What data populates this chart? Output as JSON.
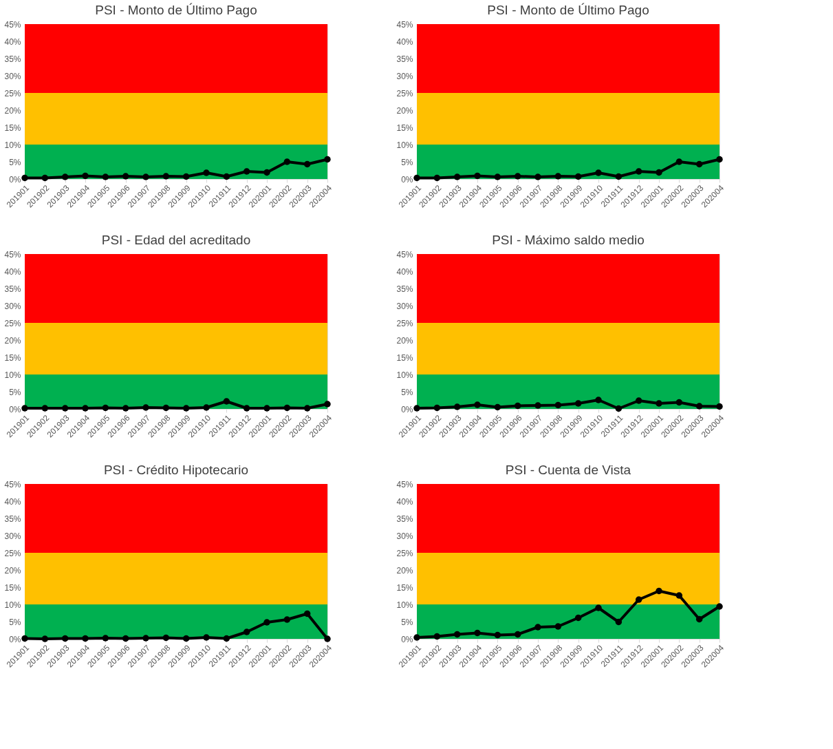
{
  "chart_data": [
    {
      "type": "line",
      "title": "PSI - Monto de Último Pago",
      "categories": [
        "201901",
        "201902",
        "201903",
        "201904",
        "201905",
        "201906",
        "201907",
        "201908",
        "201909",
        "201910",
        "201911",
        "201912",
        "202001",
        "202002",
        "202003",
        "202004"
      ],
      "series": [
        {
          "color": "#000000",
          "values": [
            0.3,
            0.3,
            0.6,
            0.9,
            0.6,
            0.8,
            0.6,
            0.8,
            0.7,
            1.8,
            0.7,
            2.2,
            1.9,
            5.0,
            4.3,
            5.7
          ]
        }
      ],
      "ylim": [
        0,
        45
      ],
      "yticks": [
        {
          "value": 0,
          "label": "0%"
        },
        {
          "value": 5,
          "label": "5%"
        },
        {
          "value": 10,
          "label": "10%"
        },
        {
          "value": 15,
          "label": "15%"
        },
        {
          "value": 20,
          "label": "20%"
        },
        {
          "value": 25,
          "label": "25%"
        },
        {
          "value": 30,
          "label": "30%"
        },
        {
          "value": 35,
          "label": "35%"
        },
        {
          "value": 40,
          "label": "40%"
        },
        {
          "value": 45,
          "label": "45%"
        }
      ],
      "bands": [
        {
          "axis": "y",
          "from": 0,
          "to": 10,
          "color": "#00b050"
        },
        {
          "axis": "y",
          "from": 10,
          "to": 25,
          "color": "#ffc000"
        },
        {
          "axis": "y",
          "from": 25,
          "to": 45,
          "color": "#ff0000"
        }
      ],
      "marker": "circle",
      "line_style": "solid",
      "grid": false
    },
    {
      "type": "line",
      "title": "PSI - Monto de Último Pago",
      "categories": [
        "201901",
        "201902",
        "201903",
        "201904",
        "201905",
        "201906",
        "201907",
        "201908",
        "201909",
        "201910",
        "201911",
        "201912",
        "202001",
        "202002",
        "202003",
        "202004"
      ],
      "series": [
        {
          "color": "#000000",
          "values": [
            0.3,
            0.3,
            0.6,
            0.9,
            0.6,
            0.8,
            0.6,
            0.8,
            0.7,
            1.8,
            0.7,
            2.2,
            1.9,
            5.0,
            4.3,
            5.7
          ]
        }
      ],
      "ylim": [
        0,
        45
      ],
      "yticks": [
        {
          "value": 0,
          "label": "0%"
        },
        {
          "value": 5,
          "label": "5%"
        },
        {
          "value": 10,
          "label": "10%"
        },
        {
          "value": 15,
          "label": "15%"
        },
        {
          "value": 20,
          "label": "20%"
        },
        {
          "value": 25,
          "label": "25%"
        },
        {
          "value": 30,
          "label": "30%"
        },
        {
          "value": 35,
          "label": "35%"
        },
        {
          "value": 40,
          "label": "40%"
        },
        {
          "value": 45,
          "label": "45%"
        }
      ],
      "bands": [
        {
          "axis": "y",
          "from": 0,
          "to": 10,
          "color": "#00b050"
        },
        {
          "axis": "y",
          "from": 10,
          "to": 25,
          "color": "#ffc000"
        },
        {
          "axis": "y",
          "from": 25,
          "to": 45,
          "color": "#ff0000"
        }
      ],
      "marker": "circle",
      "line_style": "solid",
      "grid": false
    },
    {
      "type": "line",
      "title": "PSI - Edad del acreditado",
      "categories": [
        "201901",
        "201902",
        "201903",
        "201904",
        "201905",
        "201906",
        "201907",
        "201908",
        "201909",
        "201910",
        "201911",
        "201912",
        "202001",
        "202002",
        "202003",
        "202004"
      ],
      "series": [
        {
          "color": "#000000",
          "values": [
            0.2,
            0.2,
            0.2,
            0.2,
            0.3,
            0.2,
            0.4,
            0.3,
            0.2,
            0.4,
            2.2,
            0.2,
            0.2,
            0.3,
            0.2,
            1.4
          ]
        }
      ],
      "ylim": [
        0,
        45
      ],
      "yticks": [
        {
          "value": 0,
          "label": "0%"
        },
        {
          "value": 5,
          "label": "5%"
        },
        {
          "value": 10,
          "label": "10%"
        },
        {
          "value": 15,
          "label": "15%"
        },
        {
          "value": 20,
          "label": "20%"
        },
        {
          "value": 25,
          "label": "25%"
        },
        {
          "value": 30,
          "label": "30%"
        },
        {
          "value": 35,
          "label": "35%"
        },
        {
          "value": 40,
          "label": "40%"
        },
        {
          "value": 45,
          "label": "45%"
        }
      ],
      "bands": [
        {
          "axis": "y",
          "from": 0,
          "to": 10,
          "color": "#00b050"
        },
        {
          "axis": "y",
          "from": 10,
          "to": 25,
          "color": "#ffc000"
        },
        {
          "axis": "y",
          "from": 25,
          "to": 45,
          "color": "#ff0000"
        }
      ],
      "marker": "circle",
      "line_style": "solid",
      "grid": false
    },
    {
      "type": "line",
      "title": "PSI - Máximo saldo medio",
      "categories": [
        "201901",
        "201902",
        "201903",
        "201904",
        "201905",
        "201906",
        "201907",
        "201908",
        "201909",
        "201910",
        "201911",
        "201912",
        "202001",
        "202002",
        "202003",
        "202004"
      ],
      "series": [
        {
          "color": "#000000",
          "values": [
            0.2,
            0.3,
            0.6,
            1.2,
            0.5,
            0.9,
            1.0,
            1.1,
            1.6,
            2.6,
            0.1,
            2.4,
            1.6,
            1.9,
            0.8,
            0.7
          ]
        }
      ],
      "ylim": [
        0,
        45
      ],
      "yticks": [
        {
          "value": 0,
          "label": "0%"
        },
        {
          "value": 5,
          "label": "5%"
        },
        {
          "value": 10,
          "label": "10%"
        },
        {
          "value": 15,
          "label": "15%"
        },
        {
          "value": 20,
          "label": "20%"
        },
        {
          "value": 25,
          "label": "25%"
        },
        {
          "value": 30,
          "label": "30%"
        },
        {
          "value": 35,
          "label": "35%"
        },
        {
          "value": 40,
          "label": "40%"
        },
        {
          "value": 45,
          "label": "45%"
        }
      ],
      "bands": [
        {
          "axis": "y",
          "from": 0,
          "to": 10,
          "color": "#00b050"
        },
        {
          "axis": "y",
          "from": 10,
          "to": 25,
          "color": "#ffc000"
        },
        {
          "axis": "y",
          "from": 25,
          "to": 45,
          "color": "#ff0000"
        }
      ],
      "marker": "circle",
      "line_style": "solid",
      "grid": false
    },
    {
      "type": "line",
      "title": "PSI - Crédito Hipotecario",
      "categories": [
        "201901",
        "201902",
        "201903",
        "201904",
        "201905",
        "201906",
        "201907",
        "201908",
        "201909",
        "201910",
        "201911",
        "201912",
        "202001",
        "202002",
        "202003",
        "202004"
      ],
      "series": [
        {
          "color": "#000000",
          "values": [
            0.1,
            0.0,
            0.1,
            0.1,
            0.2,
            0.1,
            0.2,
            0.3,
            0.1,
            0.4,
            0.1,
            2.0,
            4.8,
            5.6,
            7.3,
            0.0
          ]
        }
      ],
      "ylim": [
        0,
        45
      ],
      "yticks": [
        {
          "value": 0,
          "label": "0%"
        },
        {
          "value": 5,
          "label": "5%"
        },
        {
          "value": 10,
          "label": "10%"
        },
        {
          "value": 15,
          "label": "15%"
        },
        {
          "value": 20,
          "label": "20%"
        },
        {
          "value": 25,
          "label": "25%"
        },
        {
          "value": 30,
          "label": "30%"
        },
        {
          "value": 35,
          "label": "35%"
        },
        {
          "value": 40,
          "label": "40%"
        },
        {
          "value": 45,
          "label": "45%"
        }
      ],
      "bands": [
        {
          "axis": "y",
          "from": 0,
          "to": 10,
          "color": "#00b050"
        },
        {
          "axis": "y",
          "from": 10,
          "to": 25,
          "color": "#ffc000"
        },
        {
          "axis": "y",
          "from": 25,
          "to": 45,
          "color": "#ff0000"
        }
      ],
      "marker": "circle",
      "line_style": "solid",
      "grid": false
    },
    {
      "type": "line",
      "title": "PSI - Cuenta de Vista",
      "categories": [
        "201901",
        "201902",
        "201903",
        "201904",
        "201905",
        "201906",
        "201907",
        "201908",
        "201909",
        "201910",
        "201911",
        "201912",
        "202001",
        "202002",
        "202003",
        "202004"
      ],
      "series": [
        {
          "color": "#000000",
          "values": [
            0.4,
            0.7,
            1.3,
            1.7,
            1.1,
            1.3,
            3.4,
            3.6,
            6.1,
            9.0,
            4.9,
            11.4,
            13.9,
            12.6,
            5.7,
            9.4
          ]
        }
      ],
      "ylim": [
        0,
        45
      ],
      "yticks": [
        {
          "value": 0,
          "label": "0%"
        },
        {
          "value": 5,
          "label": "5%"
        },
        {
          "value": 10,
          "label": "10%"
        },
        {
          "value": 15,
          "label": "15%"
        },
        {
          "value": 20,
          "label": "20%"
        },
        {
          "value": 25,
          "label": "25%"
        },
        {
          "value": 30,
          "label": "30%"
        },
        {
          "value": 35,
          "label": "35%"
        },
        {
          "value": 40,
          "label": "40%"
        },
        {
          "value": 45,
          "label": "45%"
        }
      ],
      "bands": [
        {
          "axis": "y",
          "from": 0,
          "to": 10,
          "color": "#00b050"
        },
        {
          "axis": "y",
          "from": 10,
          "to": 25,
          "color": "#ffc000"
        },
        {
          "axis": "y",
          "from": 25,
          "to": 45,
          "color": "#ff0000"
        }
      ],
      "marker": "circle",
      "line_style": "solid",
      "grid": false
    }
  ]
}
